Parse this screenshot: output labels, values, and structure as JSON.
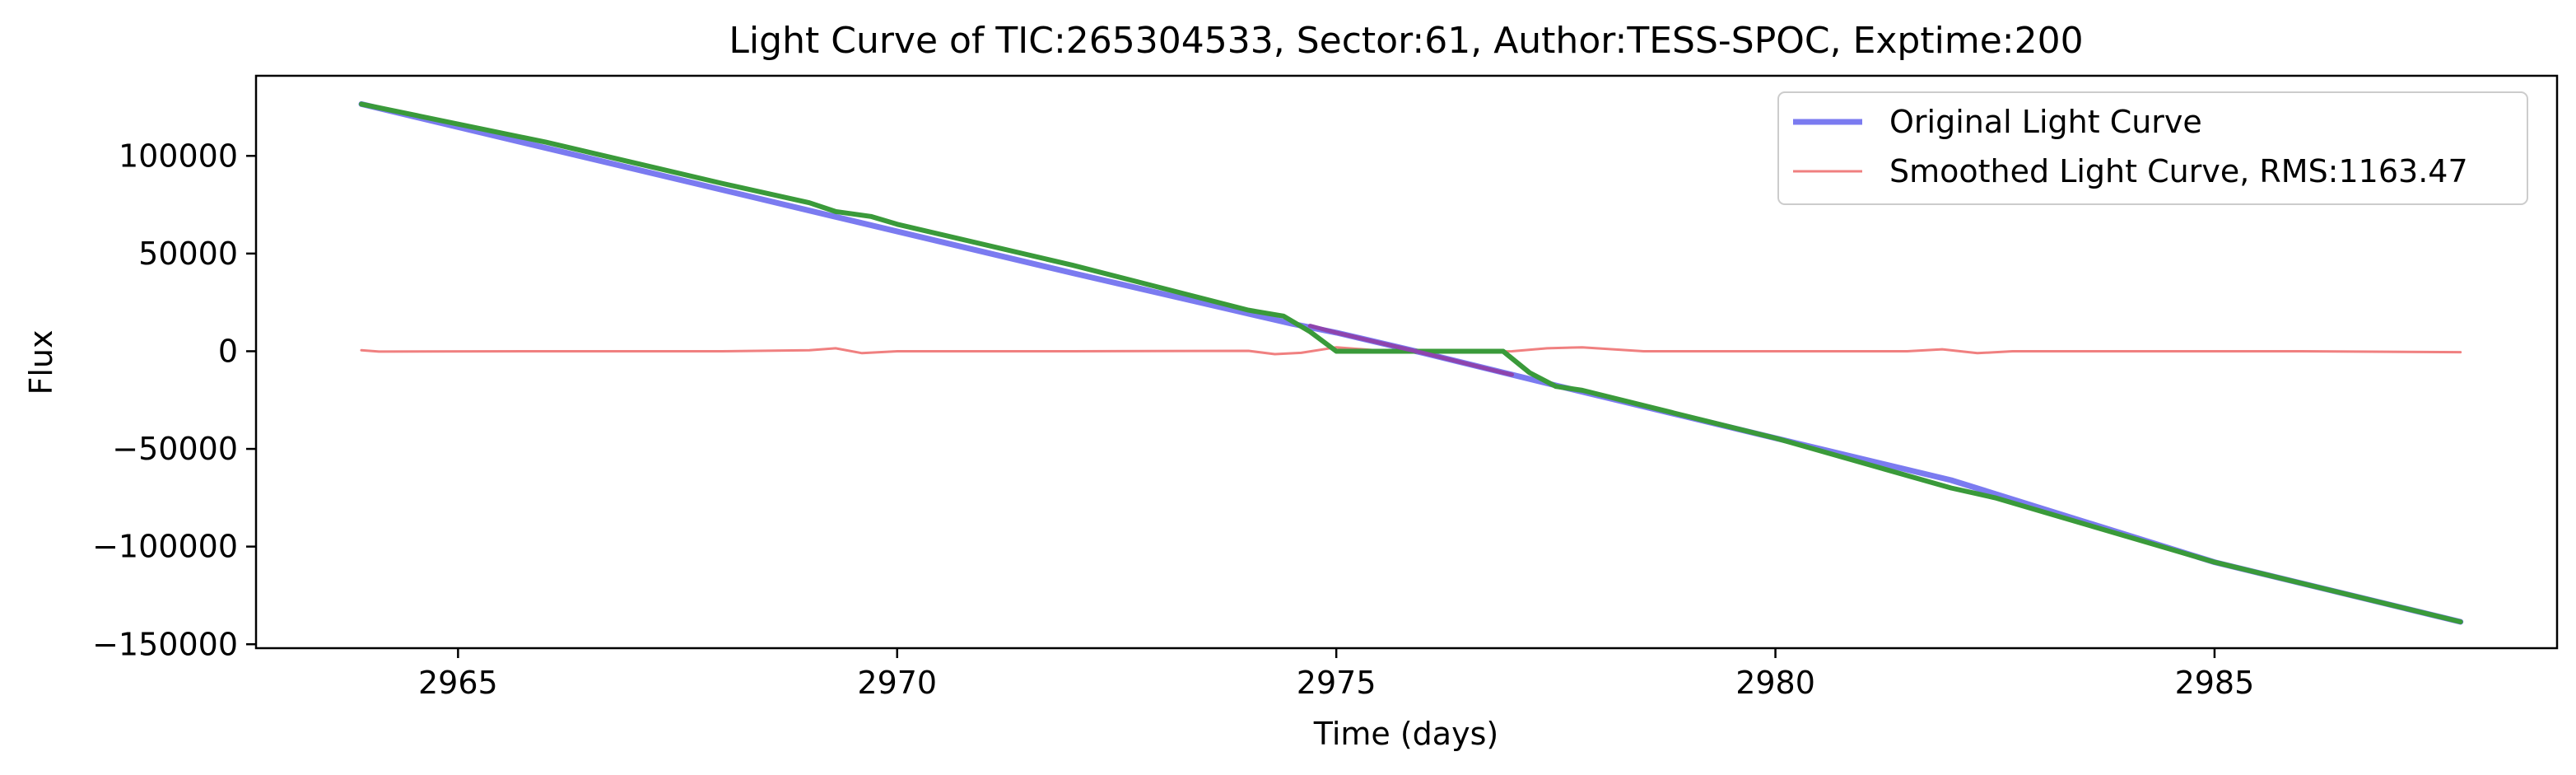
{
  "chart_data": {
    "type": "line",
    "title": "Light Curve of TIC:265304533, Sector:61, Author:TESS-SPOC, Exptime:200",
    "xlabel": "Time (days)",
    "ylabel": "Flux",
    "xlim": [
      2962.7,
      2988.9
    ],
    "ylim": [
      -152000,
      141000
    ],
    "xticks": [
      2965,
      2970,
      2975,
      2980,
      2985
    ],
    "xtick_labels": [
      "2965",
      "2970",
      "2975",
      "2980",
      "2985"
    ],
    "yticks": [
      100000,
      50000,
      0,
      -50000,
      -100000,
      -150000
    ],
    "ytick_labels": [
      "100000",
      "50000",
      "0",
      "−50000",
      "−100000",
      "−150000"
    ],
    "grid": false,
    "legend_position": "top-right",
    "series": [
      {
        "name": "Original Light Curve",
        "color": "#7b7bf0",
        "x": [
          2963.9,
          2969.0,
          2972.0,
          2974.5,
          2975.0,
          2976.0,
          2977.5,
          2980.0,
          2982.0,
          2985.0,
          2987.8
        ],
        "y": [
          126500,
          72000,
          40000,
          14000,
          9500,
          -1000,
          -17500,
          -44500,
          -66000,
          -108000,
          -138500
        ]
      },
      {
        "name": "Smoothed Light Curve, RMS:1163.47",
        "color": "#f08080",
        "x": [
          2963.9,
          2964.1,
          2966.0,
          2968.0,
          2969.0,
          2969.3,
          2969.6,
          2970.0,
          2972.0,
          2974.0,
          2974.3,
          2974.6,
          2975.0,
          2975.5,
          2976.0,
          2977.0,
          2977.4,
          2977.8,
          2978.5,
          2980.0,
          2981.5,
          2981.9,
          2982.3,
          2982.7,
          2984.0,
          2986.0,
          2987.8
        ],
        "y": [
          500,
          -200,
          0,
          0,
          500,
          1500,
          -1000,
          0,
          0,
          200,
          -1500,
          -800,
          2000,
          300,
          -200,
          0,
          1500,
          2000,
          0,
          0,
          0,
          1000,
          -1000,
          0,
          0,
          0,
          -500
        ]
      },
      {
        "color": "#3a9a3a",
        "x": [
          2963.9,
          2966.0,
          2968.0,
          2969.0,
          2969.3,
          2969.7,
          2970.0,
          2972.0,
          2974.0,
          2974.4,
          2974.7,
          2975.0,
          2976.0,
          2976.9,
          2977.2,
          2977.5,
          2977.8,
          2980.0,
          2982.0,
          2982.3,
          2982.5,
          2985.0,
          2987.8
        ],
        "y": [
          126500,
          107000,
          86000,
          76000,
          71500,
          69000,
          65000,
          44000,
          21000,
          18000,
          10000,
          0,
          0,
          0,
          -11000,
          -18000,
          -20000,
          -44500,
          -70000,
          -73000,
          -75000,
          -108000,
          -138500
        ]
      },
      {
        "color": "#8e44ad",
        "x": [
          2974.7,
          2975.0,
          2976.0,
          2976.9,
          2977.0
        ],
        "y": [
          13000,
          9500,
          -1000,
          -11000,
          -12000
        ]
      }
    ]
  }
}
